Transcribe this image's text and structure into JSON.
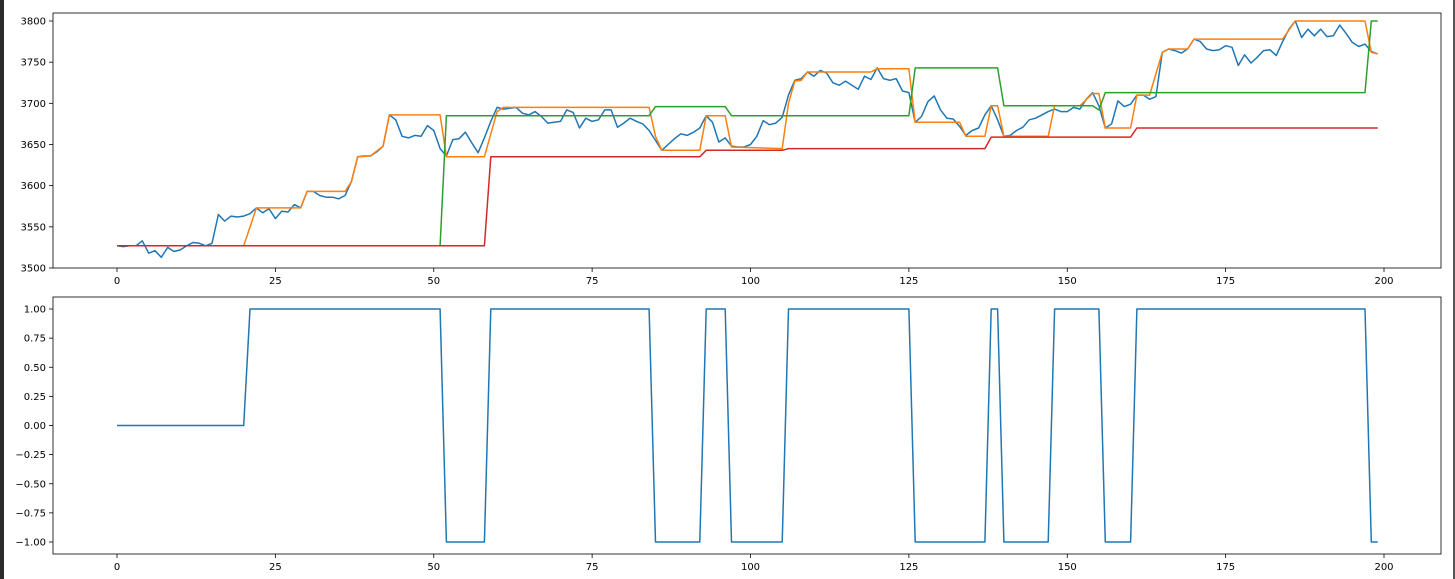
{
  "chart_data": [
    {
      "type": "line",
      "xlim": [
        -10,
        210
      ],
      "ylim": [
        3497,
        3810
      ],
      "xticks": [
        0,
        25,
        50,
        75,
        100,
        125,
        150,
        175,
        200
      ],
      "xtick_labels": [
        "0",
        "25",
        "50",
        "75",
        "100",
        "125",
        "150",
        "175",
        "200"
      ],
      "yticks": [
        3500,
        3550,
        3600,
        3650,
        3700,
        3750,
        3800
      ],
      "ytick_labels": [
        "3500",
        "3550",
        "3600",
        "3650",
        "3700",
        "3750",
        "3800"
      ],
      "grid": false,
      "series": [
        {
          "color": "#1f77b4",
          "values": [
            3527,
            3526,
            3527,
            3527,
            3533,
            3518,
            3521,
            3513,
            3525,
            3520,
            3522,
            3527,
            3531,
            3530,
            3527,
            3530,
            3565,
            3557,
            3563,
            3562,
            3563,
            3566,
            3573,
            3567,
            3572,
            3560,
            3569,
            3568,
            3577,
            3573,
            3593,
            3593,
            3588,
            3586,
            3586,
            3584,
            3588,
            3605,
            3635,
            3636,
            3636,
            3641,
            3648,
            3686,
            3680,
            3660,
            3658,
            3661,
            3660,
            3673,
            3667,
            3645,
            3636,
            3656,
            3657,
            3665,
            3652,
            3640,
            3658,
            3678,
            3695,
            3693,
            3694,
            3695,
            3688,
            3686,
            3690,
            3684,
            3676,
            3677,
            3678,
            3692,
            3689,
            3670,
            3682,
            3678,
            3680,
            3692,
            3692,
            3671,
            3676,
            3682,
            3678,
            3675,
            3667,
            3655,
            3643,
            3650,
            3657,
            3663,
            3661,
            3665,
            3670,
            3685,
            3677,
            3653,
            3658,
            3648,
            3647,
            3647,
            3650,
            3660,
            3679,
            3674,
            3676,
            3683,
            3710,
            3728,
            3730,
            3738,
            3733,
            3740,
            3737,
            3725,
            3722,
            3727,
            3722,
            3717,
            3733,
            3729,
            3743,
            3730,
            3728,
            3730,
            3715,
            3713,
            3677,
            3684,
            3702,
            3709,
            3692,
            3682,
            3681,
            3672,
            3661,
            3667,
            3670,
            3686,
            3697,
            3680,
            3660,
            3661,
            3667,
            3671,
            3680,
            3682,
            3686,
            3690,
            3693,
            3690,
            3690,
            3695,
            3693,
            3705,
            3713,
            3697,
            3670,
            3675,
            3703,
            3696,
            3699,
            3710,
            3710,
            3705,
            3708,
            3762,
            3766,
            3764,
            3761,
            3766,
            3778,
            3775,
            3766,
            3764,
            3765,
            3770,
            3768,
            3746,
            3759,
            3749,
            3756,
            3764,
            3765,
            3758,
            3775,
            3790,
            3800,
            3780,
            3790,
            3782,
            3790,
            3781,
            3782,
            3795,
            3785,
            3774,
            3769,
            3772,
            3763,
            3760
          ]
        },
        {
          "color": "#ff7f0e",
          "points": [
            [
              0,
              3527
            ],
            [
              20,
              3527
            ],
            [
              22,
              3573
            ],
            [
              29,
              3573
            ],
            [
              30,
              3593
            ],
            [
              36,
              3593
            ],
            [
              37,
              3605
            ],
            [
              38,
              3635
            ],
            [
              40,
              3636
            ],
            [
              42,
              3648
            ],
            [
              43,
              3686
            ],
            [
              51,
              3686
            ],
            [
              52,
              3635
            ],
            [
              58,
              3635
            ],
            [
              60,
              3690
            ],
            [
              61,
              3695
            ],
            [
              84,
              3695
            ],
            [
              85,
              3660
            ],
            [
              86,
              3643
            ],
            [
              92,
              3643
            ],
            [
              93,
              3685
            ],
            [
              96,
              3685
            ],
            [
              97,
              3647
            ],
            [
              105,
              3645
            ],
            [
              106,
              3700
            ],
            [
              107,
              3727
            ],
            [
              108,
              3728
            ],
            [
              109,
              3738
            ],
            [
              119,
              3738
            ],
            [
              120,
              3742
            ],
            [
              125,
              3742
            ],
            [
              126,
              3677
            ],
            [
              133,
              3677
            ],
            [
              134,
              3660
            ],
            [
              137,
              3660
            ],
            [
              138,
              3697
            ],
            [
              139,
              3697
            ],
            [
              140,
              3660
            ],
            [
              147,
              3660
            ],
            [
              148,
              3697
            ],
            [
              152,
              3697
            ],
            [
              154,
              3712
            ],
            [
              155,
              3712
            ],
            [
              156,
              3670
            ],
            [
              160,
              3670
            ],
            [
              161,
              3710
            ],
            [
              163,
              3710
            ],
            [
              165,
              3762
            ],
            [
              166,
              3766
            ],
            [
              169,
              3766
            ],
            [
              170,
              3778
            ],
            [
              184,
              3778
            ],
            [
              186,
              3800
            ],
            [
              197,
              3800
            ],
            [
              198,
              3762
            ],
            [
              199,
              3760
            ]
          ]
        },
        {
          "color": "#2ca02c",
          "points": [
            [
              0,
              3527
            ],
            [
              51,
              3527
            ],
            [
              52,
              3685
            ],
            [
              84,
              3685
            ],
            [
              85,
              3696
            ],
            [
              96,
              3696
            ],
            [
              97,
              3685
            ],
            [
              125,
              3685
            ],
            [
              126,
              3743
            ],
            [
              139,
              3743
            ],
            [
              140,
              3697
            ],
            [
              154,
              3697
            ],
            [
              155,
              3692
            ],
            [
              156,
              3713
            ],
            [
              197,
              3713
            ],
            [
              198,
              3800
            ],
            [
              199,
              3800
            ]
          ]
        },
        {
          "color": "#d62728",
          "points": [
            [
              0,
              3527
            ],
            [
              58,
              3527
            ],
            [
              59,
              3635
            ],
            [
              92,
              3635
            ],
            [
              93,
              3643
            ],
            [
              105,
              3643
            ],
            [
              106,
              3645
            ],
            [
              137,
              3645
            ],
            [
              138,
              3659
            ],
            [
              160,
              3659
            ],
            [
              161,
              3670
            ],
            [
              199,
              3670
            ]
          ]
        }
      ]
    },
    {
      "type": "line",
      "xlim": [
        -10,
        210
      ],
      "ylim": [
        -1.1,
        1.1
      ],
      "xticks": [
        0,
        25,
        50,
        75,
        100,
        125,
        150,
        175,
        200
      ],
      "xtick_labels": [
        "0",
        "25",
        "50",
        "75",
        "100",
        "125",
        "150",
        "175",
        "200"
      ],
      "yticks": [
        1,
        0.75,
        0.5,
        0.25,
        0,
        -0.25,
        -0.5,
        -0.75,
        -1
      ],
      "ytick_labels": [
        "1.00",
        "0.75",
        "0.50",
        "0.25",
        "0.00",
        "−0.25",
        "−0.50",
        "−0.75",
        "−1.00"
      ],
      "grid": false,
      "series": [
        {
          "color": "#1f77b4",
          "points": [
            [
              0,
              0
            ],
            [
              20,
              0
            ],
            [
              21,
              1
            ],
            [
              51,
              1
            ],
            [
              52,
              -1
            ],
            [
              58,
              -1
            ],
            [
              59,
              1
            ],
            [
              84,
              1
            ],
            [
              85,
              -1
            ],
            [
              92,
              -1
            ],
            [
              93,
              1
            ],
            [
              96,
              1
            ],
            [
              97,
              -1
            ],
            [
              105,
              -1
            ],
            [
              106,
              1
            ],
            [
              125,
              1
            ],
            [
              126,
              -1
            ],
            [
              137,
              -1
            ],
            [
              138,
              1
            ],
            [
              139,
              1
            ],
            [
              140,
              -1
            ],
            [
              147,
              -1
            ],
            [
              148,
              1
            ],
            [
              155,
              1
            ],
            [
              156,
              -1
            ],
            [
              160,
              -1
            ],
            [
              161,
              1
            ],
            [
              197,
              1
            ],
            [
              198,
              -1
            ],
            [
              199,
              -1
            ]
          ]
        }
      ]
    }
  ]
}
